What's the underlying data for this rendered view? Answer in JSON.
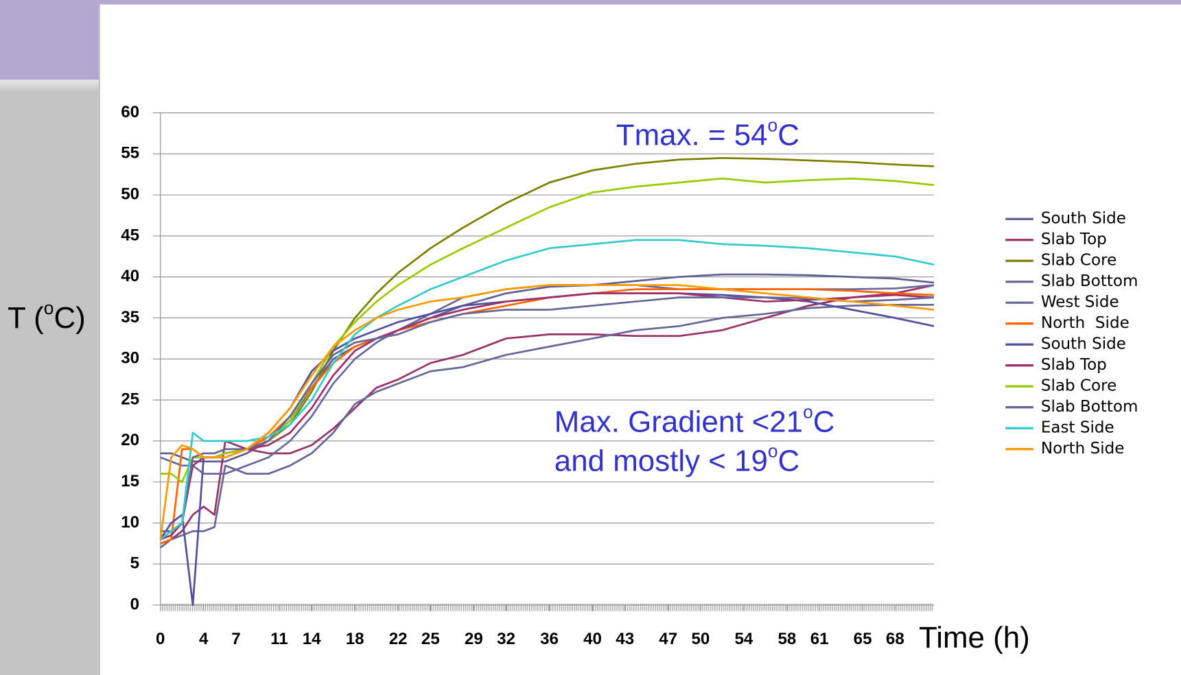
{
  "chart_data": {
    "type": "line",
    "ylabel": [
      "T (",
      "o",
      "C)"
    ],
    "xlabel": "Time (h)",
    "annotations": [
      [
        "Tmax. = 54",
        "o",
        "C"
      ],
      [
        "Max. Gradient <21",
        "o",
        "C"
      ],
      [
        "and mostly < 19",
        "o",
        "C"
      ]
    ],
    "xlim": [
      0,
      71.6
    ],
    "ylim": [
      0,
      60
    ],
    "yticks": [
      0,
      5,
      10,
      15,
      20,
      25,
      30,
      35,
      40,
      45,
      50,
      55,
      60
    ],
    "xticks": [
      0,
      4,
      7,
      11,
      14,
      18,
      22,
      25,
      29,
      32,
      36,
      40,
      43,
      47,
      50,
      54,
      58,
      61,
      65,
      68
    ],
    "grid": true,
    "legend": "right",
    "x": [
      0,
      1,
      2,
      3,
      4,
      5,
      6,
      8,
      10,
      12,
      14,
      16,
      18,
      20,
      22,
      25,
      28,
      32,
      36,
      40,
      44,
      48,
      52,
      56,
      60,
      64,
      68,
      71.6
    ],
    "series": [
      {
        "name": "South Side",
        "color": "#5f5f96",
        "values": [
          18.5,
          18.5,
          18,
          17.5,
          17.5,
          17.5,
          17.5,
          18.5,
          20,
          22.5,
          26.5,
          30,
          31.5,
          32.5,
          33.5,
          35,
          36.5,
          38,
          38.8,
          39,
          39.5,
          40,
          40.3,
          40.3,
          40.2,
          40,
          39.8,
          39.3
        ]
      },
      {
        "name": "Slab Top",
        "color": "#993366",
        "values": [
          7.5,
          8,
          9,
          11,
          12,
          11,
          20,
          19,
          18.5,
          18.5,
          19.5,
          21.5,
          24,
          26.5,
          27.5,
          29.5,
          30.5,
          32.5,
          33,
          33,
          32.8,
          32.8,
          33.5,
          35,
          36.5,
          37.5,
          38,
          39
        ]
      },
      {
        "name": "Slab Core",
        "color": "#808000",
        "values": [
          8,
          9,
          10,
          18,
          18,
          18,
          18.5,
          19,
          20,
          22,
          26,
          31,
          35,
          38,
          40.5,
          43.5,
          46,
          49,
          51.5,
          53,
          53.8,
          54.3,
          54.5,
          54.4,
          54.2,
          54,
          53.7,
          53.5
        ]
      },
      {
        "name": "Slab Bottom",
        "color": "#666699",
        "values": [
          7,
          8,
          8.5,
          9,
          9,
          9.5,
          17,
          16,
          16,
          17,
          18.5,
          21,
          24.5,
          26,
          27,
          28.5,
          29,
          30.5,
          31.5,
          32.5,
          33.5,
          34,
          35,
          35.5,
          36.2,
          36.5,
          36.6,
          36.6
        ]
      },
      {
        "name": "West Side",
        "color": "#6a6aa3",
        "values": [
          18,
          17.5,
          17,
          17,
          16,
          16,
          16,
          17,
          18,
          20,
          23,
          27,
          30,
          32,
          33.5,
          35.5,
          37.5,
          38.5,
          39,
          39,
          39,
          38.5,
          38.5,
          38.5,
          38.5,
          38.5,
          38.6,
          39
        ]
      },
      {
        "name": "North  Side",
        "color": "#ff6600",
        "values": [
          7.5,
          8,
          19,
          19,
          18,
          18,
          18,
          19,
          20.5,
          23,
          26.5,
          29.5,
          31.5,
          32.5,
          33.5,
          34.5,
          35.5,
          36.5,
          37.5,
          38,
          38.5,
          38.5,
          38.5,
          38.5,
          38.5,
          38.3,
          38,
          37.8
        ]
      },
      {
        "name": "South Side",
        "color": "#5050a0",
        "values": [
          8,
          10,
          11,
          0,
          18,
          18,
          18.5,
          19,
          21,
          24,
          28.5,
          31,
          32.5,
          33.5,
          34.5,
          35.5,
          36.5,
          37,
          37.5,
          38,
          38,
          38,
          37.8,
          37.5,
          37,
          36,
          35,
          34
        ]
      },
      {
        "name": "Slab Top",
        "color": "#a0306a",
        "values": [
          8,
          8.5,
          10,
          17,
          18,
          18,
          18.5,
          19,
          19.5,
          21,
          24,
          28,
          31,
          32.5,
          33.5,
          35,
          36,
          37,
          37.5,
          38,
          38,
          38,
          37.5,
          37,
          37.2,
          37.5,
          37.8,
          37.5
        ]
      },
      {
        "name": "Slab Core",
        "color": "#99cc00",
        "values": [
          16,
          16,
          15,
          18,
          18,
          18,
          18.5,
          19,
          20,
          22.5,
          27,
          31.5,
          34.5,
          37,
          39,
          41.5,
          43.5,
          46,
          48.5,
          50.3,
          51,
          51.5,
          52,
          51.5,
          51.8,
          52,
          51.7,
          51.2
        ]
      },
      {
        "name": "Slab Bottom",
        "color": "#666699",
        "values": [
          9,
          9,
          10,
          18,
          18.5,
          18.5,
          19,
          19,
          20,
          23,
          27,
          30.5,
          32,
          32.5,
          33,
          34.5,
          35.5,
          36,
          36,
          36.5,
          37,
          37.5,
          37.5,
          37.5,
          37.4,
          37,
          37.2,
          37.5
        ]
      },
      {
        "name": "East Side",
        "color": "#33cccc",
        "values": [
          8,
          9,
          10,
          21,
          20,
          20,
          20,
          20,
          20.5,
          22,
          25,
          29.5,
          33,
          35,
          36.5,
          38.5,
          40,
          42,
          43.5,
          44,
          44.5,
          44.5,
          44,
          43.8,
          43.5,
          43,
          42.5,
          41.5
        ]
      },
      {
        "name": "North Side",
        "color": "#ff9900",
        "values": [
          8,
          18,
          19.5,
          19,
          18,
          18,
          18,
          19,
          21,
          24,
          28,
          31.5,
          33.5,
          35,
          36,
          37,
          37.5,
          38.5,
          39,
          39,
          39,
          39,
          38.5,
          38,
          37.5,
          37,
          36.5,
          36
        ]
      }
    ]
  }
}
